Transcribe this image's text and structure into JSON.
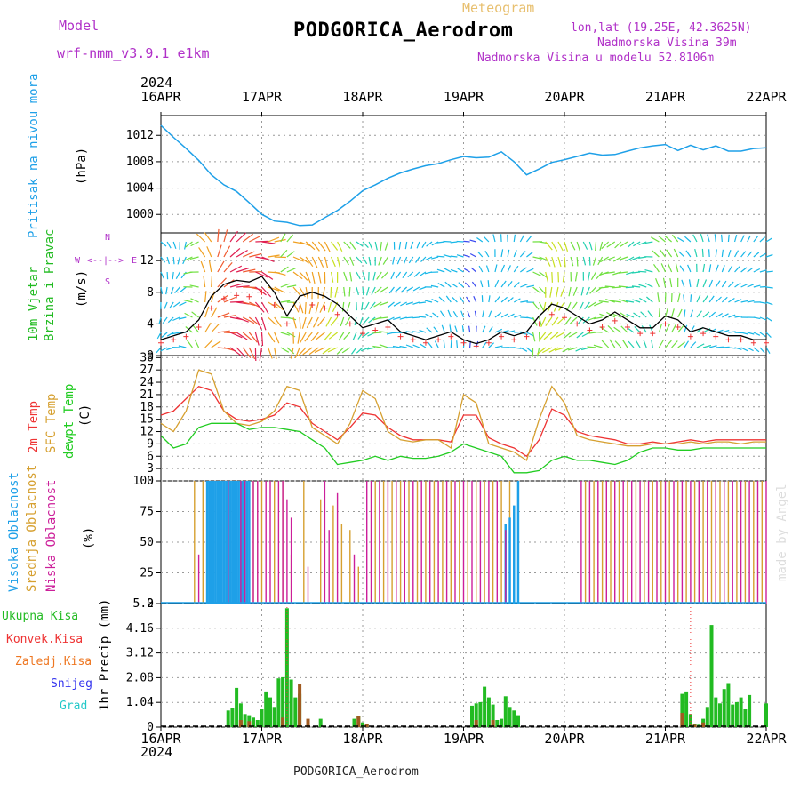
{
  "header": {
    "model_label": "Model",
    "model_name": "wrf-nmm_v3.9.1 e1km",
    "meteogram_label": "Meteogram",
    "station_title": "PODGORICA_Aerodrom",
    "lonlat": "lon,lat (19.25E, 42.3625N)",
    "elevation": "Nadmorska Visina 39m",
    "model_elevation": "Nadmorska Visina u modelu 52.8106m",
    "footer_station": "PODGORICA_Aerodrom",
    "watermark": "made by Angel"
  },
  "colors": {
    "pressure": "#1ea0e8",
    "wind_label": "#22bb22",
    "temp2m": "#ee3333",
    "sfc": "#d6a030",
    "dewpt": "#22cc22",
    "cloud_high": "#1ea0e8",
    "cloud_mid": "#d6a030",
    "cloud_low": "#cc1f9a",
    "precip_total": "#22bb22",
    "precip_conv": "#ee3333",
    "precip_frz": "#ee7722",
    "snow": "#3333ee",
    "hail": "#22c8c8",
    "wind_dir": "#b030c8",
    "model": "#b030c8"
  },
  "time_axis": {
    "year": "2024",
    "labels": [
      "16APR",
      "17APR",
      "18APR",
      "19APR",
      "20APR",
      "21APR",
      "22APR"
    ]
  },
  "panels": {
    "pressure": {
      "label": "Pritisak na nivou mora",
      "unit": "(hPa)"
    },
    "wind": {
      "label_1": "10m Vjetar",
      "label_2": "Brzina i Pravac",
      "unit": "(m/s)",
      "compass": [
        "W",
        "<--",
        "|",
        "-->",
        "E"
      ],
      "compass_vertical_top": "N",
      "compass_vertical_bottom": "S"
    },
    "temperature": {
      "label_2m": "2m Temp",
      "label_sfc": "SFC Temp",
      "label_dewpt": "dewpt Temp",
      "unit": "(C)"
    },
    "cloud": {
      "label_high": "Visoka Oblacnost",
      "label_mid": "Srednja Oblacnost",
      "label_low": "Niska Oblacnost",
      "unit": "(%)"
    },
    "precip": {
      "label_total": "Ukupna Kisa",
      "label_conv": "Konvek.Kisa",
      "label_frz": "Zaledj.Kisa",
      "label_snow": "Snijeg",
      "label_hail": "Grad",
      "axis_label": "1hr Precip (mm)"
    }
  },
  "chart_data": [
    {
      "type": "line",
      "name": "pressure",
      "xlim": [
        0,
        144
      ],
      "ylim": [
        997.2,
        1015
      ],
      "yticks": [
        "1012",
        "1008",
        "1004",
        "1000"
      ],
      "ytick_values": [
        1012,
        1008,
        1004,
        1000
      ],
      "x": [
        0,
        3,
        6,
        9,
        12,
        15,
        18,
        21,
        24,
        27,
        30,
        33,
        36,
        39,
        42,
        45,
        48,
        51,
        54,
        57,
        60,
        63,
        66,
        69,
        72,
        75,
        78,
        81,
        84,
        87,
        90,
        93,
        96,
        99,
        102,
        105,
        108,
        111,
        114,
        117,
        120,
        123,
        126,
        129,
        132,
        135,
        138,
        141,
        144
      ],
      "values": [
        1013.5,
        1011.7,
        1010.0,
        1008.2,
        1006.0,
        1004.5,
        1003.5,
        1001.8,
        1000.0,
        999.0,
        998.8,
        998.3,
        998.4,
        999.5,
        1000.6,
        1002.0,
        1003.6,
        1004.5,
        1005.5,
        1006.3,
        1006.9,
        1007.4,
        1007.7,
        1008.3,
        1008.8,
        1008.6,
        1008.7,
        1009.5,
        1008.0,
        1006.0,
        1006.9,
        1007.9,
        1008.3,
        1008.8,
        1009.3,
        1009.0,
        1009.1,
        1009.6,
        1010.1,
        1010.4,
        1010.6,
        1009.7,
        1010.5,
        1009.8,
        1010.4,
        1009.6,
        1009.6,
        1010.0,
        1010.1
      ]
    },
    {
      "type": "line",
      "name": "wind",
      "xlim": [
        0,
        144
      ],
      "ylim": [
        0,
        15.5
      ],
      "yticks": [
        "12",
        "8",
        "4",
        "0"
      ],
      "ytick_values": [
        12,
        8,
        4,
        0
      ],
      "x": [
        0,
        3,
        6,
        9,
        12,
        15,
        18,
        21,
        24,
        27,
        30,
        33,
        36,
        39,
        42,
        45,
        48,
        51,
        54,
        57,
        60,
        63,
        66,
        69,
        72,
        75,
        78,
        81,
        84,
        87,
        90,
        93,
        96,
        99,
        102,
        105,
        108,
        111,
        114,
        117,
        120,
        123,
        126,
        129,
        132,
        135,
        138,
        141,
        144
      ],
      "speed": [
        2.0,
        2.5,
        3.0,
        4.5,
        7.5,
        9.0,
        9.5,
        9.3,
        10.0,
        8.0,
        5.0,
        7.5,
        8.0,
        7.5,
        6.5,
        5.0,
        3.5,
        4.0,
        4.5,
        3.0,
        2.5,
        2.0,
        2.5,
        3.0,
        2.0,
        1.5,
        2.0,
        3.0,
        2.5,
        3.0,
        5.0,
        6.5,
        6.0,
        5.0,
        4.0,
        4.5,
        5.5,
        4.5,
        3.5,
        3.5,
        5.0,
        4.5,
        3.0,
        3.5,
        3.0,
        2.5,
        2.5,
        2.0,
        2.0
      ]
    },
    {
      "type": "line",
      "name": "temperature",
      "xlim": [
        0,
        144
      ],
      "ylim": [
        0,
        30.5
      ],
      "yticks": [
        "30",
        "27",
        "24",
        "21",
        "18",
        "15",
        "12",
        "9",
        "6",
        "3",
        "0"
      ],
      "ytick_values": [
        30,
        27,
        24,
        21,
        18,
        15,
        12,
        9,
        6,
        3,
        0
      ],
      "x": [
        0,
        3,
        6,
        9,
        12,
        15,
        18,
        21,
        24,
        27,
        30,
        33,
        36,
        39,
        42,
        45,
        48,
        51,
        54,
        57,
        60,
        63,
        66,
        69,
        72,
        75,
        78,
        81,
        84,
        87,
        90,
        93,
        96,
        99,
        102,
        105,
        108,
        111,
        114,
        117,
        120,
        123,
        126,
        129,
        132,
        135,
        138,
        141,
        144
      ],
      "series": [
        {
          "name": "2m Temp",
          "values": [
            16,
            17,
            20,
            23,
            22,
            17,
            15,
            14.5,
            15,
            16,
            19,
            18,
            14,
            12,
            10,
            13,
            16.5,
            16,
            13,
            11,
            10,
            10,
            10,
            9.5,
            16,
            16,
            10.5,
            9,
            8,
            6,
            10,
            17.5,
            16,
            12,
            11,
            10.5,
            10,
            9,
            9,
            9.5,
            9,
            9.5,
            10,
            9.5,
            10,
            10,
            10,
            10,
            10
          ]
        },
        {
          "name": "SFC Temp",
          "values": [
            14,
            12,
            17,
            27,
            26,
            17,
            14,
            13.5,
            14.5,
            17,
            23,
            22,
            13,
            11,
            9,
            14,
            22,
            20,
            12,
            10,
            9.5,
            10,
            10,
            8,
            21,
            19,
            9,
            8,
            7,
            5,
            15,
            23,
            19,
            11,
            10,
            9.5,
            9,
            8.5,
            8.5,
            9,
            9,
            9,
            9.5,
            9,
            9.5,
            9.5,
            9,
            9.5,
            9.5
          ]
        },
        {
          "name": "dewpt Temp",
          "values": [
            11,
            8,
            9,
            13,
            14,
            14,
            14,
            12.5,
            13,
            13,
            12.5,
            12,
            10,
            8,
            4,
            4.5,
            5,
            6,
            5,
            6,
            5.5,
            5.5,
            6,
            7,
            9,
            8,
            7,
            6,
            2,
            2,
            2.5,
            5,
            6,
            5,
            5,
            4.5,
            4,
            5,
            7,
            8,
            8,
            7.5,
            7.5,
            8,
            8,
            8,
            8,
            8,
            8
          ]
        }
      ]
    },
    {
      "type": "bar",
      "name": "cloud",
      "xlim": [
        0,
        144
      ],
      "ylim": [
        0,
        100
      ],
      "yticks": [
        "100",
        "75",
        "50",
        "25",
        "0"
      ],
      "ytick_values": [
        100,
        75,
        50,
        25,
        0
      ],
      "series": [
        {
          "name": "Srednja Oblacnost",
          "x": [
            8,
            10,
            11,
            12,
            13,
            14,
            15,
            16,
            17,
            18,
            19,
            20,
            21,
            22,
            23,
            24,
            27,
            29,
            31,
            34,
            38,
            41,
            43,
            45,
            47,
            48,
            51,
            53,
            55,
            57,
            59,
            61,
            63,
            65,
            67,
            69,
            71,
            73,
            75,
            77,
            79,
            81,
            83,
            85,
            87,
            89,
            91,
            93,
            95,
            97,
            99,
            101,
            103,
            105,
            107,
            109,
            111,
            113,
            115,
            117,
            119,
            121,
            123,
            125,
            127,
            129,
            131,
            133,
            135,
            137,
            139,
            141,
            143
          ],
          "values": [
            100,
            100,
            100,
            100,
            100,
            100,
            100,
            100,
            100,
            100,
            100,
            100,
            100,
            100,
            100,
            100,
            100,
            100,
            40,
            100,
            85,
            80,
            65,
            60,
            30,
            0,
            100,
            100,
            100,
            100,
            100,
            100,
            100,
            100,
            100,
            100,
            100,
            100,
            100,
            100,
            100,
            100,
            100,
            100,
            0,
            0,
            0,
            0,
            0,
            0,
            0,
            100,
            100,
            100,
            100,
            100,
            100,
            100,
            100,
            100,
            100,
            100,
            100,
            100,
            100,
            100,
            100,
            100,
            100,
            100,
            100,
            100,
            100
          ]
        },
        {
          "name": "Visoka Oblacnost",
          "x": [
            11,
            11.5,
            12,
            12.5,
            13,
            13.5,
            14,
            14.5,
            15,
            15.5,
            16,
            16.5,
            17,
            17.5,
            18,
            18.5,
            19,
            19.5,
            20,
            20.5,
            21,
            82,
            83,
            84,
            85
          ],
          "values": [
            100,
            100,
            100,
            100,
            100,
            100,
            100,
            100,
            100,
            100,
            100,
            100,
            100,
            100,
            100,
            100,
            100,
            100,
            100,
            100,
            100,
            65,
            70,
            80,
            100
          ]
        },
        {
          "name": "Niska Oblacnost",
          "x": [
            9,
            16,
            19,
            20,
            22,
            23,
            25,
            26,
            28,
            29,
            30,
            31,
            35,
            39,
            40,
            42,
            46,
            49,
            50,
            52,
            54,
            56,
            58,
            60,
            62,
            64,
            66,
            68,
            70,
            72,
            74,
            76,
            78,
            80,
            82,
            100,
            102,
            104,
            106,
            108,
            110,
            112,
            114,
            116,
            118,
            120,
            122,
            124,
            126,
            128,
            130,
            132,
            134,
            136,
            138,
            140,
            142,
            144
          ],
          "values": [
            40,
            100,
            100,
            100,
            100,
            100,
            100,
            100,
            100,
            100,
            85,
            70,
            30,
            100,
            60,
            90,
            40,
            100,
            100,
            100,
            100,
            100,
            100,
            100,
            100,
            100,
            100,
            100,
            100,
            100,
            100,
            100,
            100,
            100,
            60,
            100,
            100,
            100,
            100,
            100,
            100,
            100,
            100,
            100,
            100,
            100,
            100,
            100,
            100,
            100,
            100,
            100,
            100,
            100,
            100,
            100,
            100,
            100
          ]
        }
      ]
    },
    {
      "type": "bar",
      "name": "precipitation",
      "xlim": [
        0,
        144
      ],
      "ylim": [
        0,
        5.2
      ],
      "yticks": [
        "5.2",
        "4.16",
        "3.12",
        "2.08",
        "1.04",
        "0"
      ],
      "ytick_values": [
        5.2,
        4.16,
        3.12,
        2.08,
        1.04,
        0
      ],
      "series": [
        {
          "name": "Ukupna Kisa",
          "x": [
            16,
            17,
            18,
            19,
            20,
            21,
            22,
            23,
            24,
            25,
            26,
            27,
            28,
            29,
            30,
            31,
            32,
            33,
            38,
            46,
            47,
            48,
            49,
            74,
            75,
            76,
            77,
            78,
            79,
            80,
            81,
            82,
            83,
            84,
            85,
            124,
            125,
            126,
            127,
            128,
            129,
            130,
            131,
            132,
            133,
            134,
            135,
            136,
            137,
            138,
            139,
            140,
            144
          ],
          "values": [
            0.7,
            0.8,
            1.65,
            1.0,
            0.55,
            0.5,
            0.4,
            0.3,
            0.75,
            1.5,
            1.25,
            0.85,
            2.05,
            2.1,
            5.0,
            2.0,
            1.25,
            1.4,
            0.35,
            0.35,
            0.45,
            0.2,
            0.15,
            0.9,
            1.0,
            1.05,
            1.7,
            1.25,
            0.95,
            0.3,
            0.35,
            1.3,
            0.85,
            0.7,
            0.5,
            1.4,
            1.5,
            0.55,
            0.15,
            0.1,
            0.35,
            0.85,
            4.3,
            1.25,
            1.0,
            1.6,
            1.85,
            0.95,
            1.05,
            1.25,
            0.75,
            1.35,
            1.0
          ]
        },
        {
          "name": "Konvek.Kisa",
          "x": [
            19,
            21,
            29,
            33,
            35,
            47,
            49,
            75,
            79,
            124,
            127,
            129
          ],
          "values": [
            0.3,
            0.25,
            0.4,
            1.8,
            0.35,
            0.45,
            0.15,
            0.3,
            0.3,
            0.6,
            0.1,
            0.2
          ]
        }
      ]
    }
  ]
}
